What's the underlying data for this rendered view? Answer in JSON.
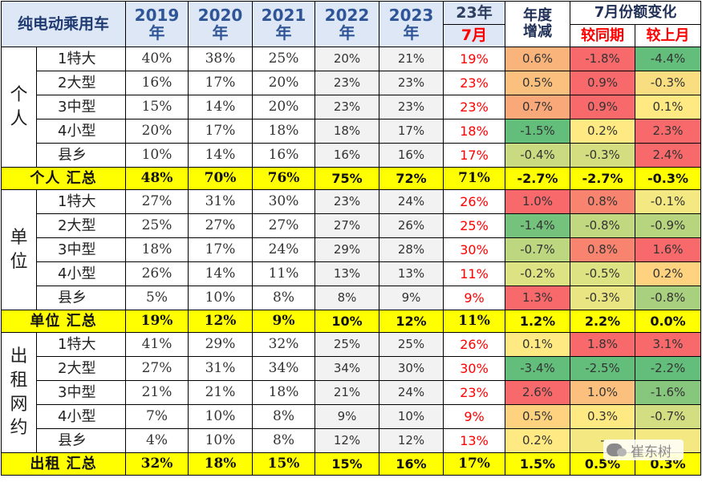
{
  "header": {
    "title": "纯电动乘用车",
    "years": [
      {
        "year": "2019",
        "unit": "年"
      },
      {
        "year": "2020",
        "unit": "年"
      },
      {
        "year": "2021",
        "unit": "年"
      },
      {
        "year": "2022",
        "unit": "年"
      },
      {
        "year": "2023",
        "unit": "年"
      }
    ],
    "col23_top": "23年",
    "col23_bottom": "7月",
    "annual_change": "年度增减",
    "july_change": "7月份额变化",
    "yoy": "较同期",
    "mom": "较上月"
  },
  "groups": [
    {
      "label": "个人",
      "rows": [
        {
          "cat": "1特大",
          "y2019": "40%",
          "y2020": "38%",
          "y2021": "25%",
          "y2022": "20%",
          "y2023": "21%",
          "m7": "19%",
          "annual": "0.6%",
          "yoy": "-1.8%",
          "mom": "-4.4%",
          "annual_color": "#f9b47c",
          "yoy_color": "#f8696b",
          "mom_color": "#63be7b"
        },
        {
          "cat": "2大型",
          "y2019": "16%",
          "y2020": "17%",
          "y2021": "20%",
          "y2022": "23%",
          "y2023": "23%",
          "m7": "23%",
          "annual": "0.5%",
          "yoy": "0.9%",
          "mom": "-0.3%",
          "annual_color": "#fbc07e",
          "yoy_color": "#f8696b",
          "mom_color": "#f8dd81"
        },
        {
          "cat": "3中型",
          "y2019": "15%",
          "y2020": "14%",
          "y2021": "20%",
          "y2022": "23%",
          "y2023": "23%",
          "m7": "23%",
          "annual": "0.7%",
          "yoy": "0.9%",
          "mom": "0.1%",
          "annual_color": "#f9a87a",
          "yoy_color": "#f8696b",
          "mom_color": "#fee983"
        },
        {
          "cat": "4小型",
          "y2019": "20%",
          "y2020": "17%",
          "y2021": "18%",
          "y2022": "18%",
          "y2023": "17%",
          "m7": "18%",
          "annual": "-1.5%",
          "yoy": "0.2%",
          "mom": "2.3%",
          "annual_color": "#63be7b",
          "yoy_color": "#fee983",
          "mom_color": "#f8696b"
        },
        {
          "cat": "县乡",
          "y2019": "10%",
          "y2020": "14%",
          "y2021": "16%",
          "y2022": "16%",
          "y2023": "16%",
          "m7": "17%",
          "annual": "-0.4%",
          "yoy": "-0.3%",
          "mom": "2.4%",
          "annual_color": "#c9da80",
          "yoy_color": "#d5dd81",
          "mom_color": "#f8696b"
        }
      ],
      "summary": {
        "label": "个人 汇总",
        "y2019": "48%",
        "y2020": "70%",
        "y2021": "76%",
        "y2022": "75%",
        "y2023": "72%",
        "m7": "71%",
        "annual": "-2.7%",
        "yoy": "-2.7%",
        "mom": "-0.3%"
      }
    },
    {
      "label": "单位",
      "rows": [
        {
          "cat": "1特大",
          "y2019": "27%",
          "y2020": "31%",
          "y2021": "30%",
          "y2022": "23%",
          "y2023": "24%",
          "m7": "26%",
          "annual": "1.0%",
          "yoy": "0.8%",
          "mom": "-0.1%",
          "annual_color": "#f8696b",
          "yoy_color": "#f8846f",
          "mom_color": "#f4e883"
        },
        {
          "cat": "2大型",
          "y2019": "25%",
          "y2020": "27%",
          "y2021": "27%",
          "y2022": "27%",
          "y2023": "26%",
          "m7": "25%",
          "annual": "-1.4%",
          "yoy": "-0.8%",
          "mom": "-0.9%",
          "annual_color": "#74c27c",
          "yoy_color": "#c2d880",
          "mom_color": "#b7d57f"
        },
        {
          "cat": "3中型",
          "y2019": "18%",
          "y2020": "17%",
          "y2021": "24%",
          "y2022": "29%",
          "y2023": "28%",
          "m7": "30%",
          "annual": "-0.7%",
          "yoy": "0.8%",
          "mom": "1.6%",
          "annual_color": "#bcd780",
          "yoy_color": "#f8846f",
          "mom_color": "#f8696b"
        },
        {
          "cat": "4小型",
          "y2019": "26%",
          "y2020": "14%",
          "y2021": "11%",
          "y2022": "13%",
          "y2023": "13%",
          "m7": "11%",
          "annual": "-0.2%",
          "yoy": "-0.5%",
          "mom": "0.2%",
          "annual_color": "#dde282",
          "yoy_color": "#dde282",
          "mom_color": "#fed27f"
        },
        {
          "cat": "县乡",
          "y2019": "5%",
          "y2020": "10%",
          "y2021": "8%",
          "y2022": "8%",
          "y2023": "9%",
          "m7": "9%",
          "annual": "1.3%",
          "yoy": "-0.3%",
          "mom": "-0.8%",
          "annual_color": "#f8696b",
          "yoy_color": "#e9e583",
          "mom_color": "#a9d07f"
        }
      ],
      "summary": {
        "label": "单位 汇总",
        "y2019": "19%",
        "y2020": "12%",
        "y2021": "9%",
        "y2022": "10%",
        "y2023": "12%",
        "m7": "11%",
        "annual": "1.2%",
        "yoy": "2.2%",
        "mom": "0.0%"
      }
    },
    {
      "label": "出租网约",
      "rows": [
        {
          "cat": "1特大",
          "y2019": "41%",
          "y2020": "29%",
          "y2021": "32%",
          "y2022": "25%",
          "y2023": "25%",
          "m7": "26%",
          "annual": "0.1%",
          "yoy": "1.8%",
          "mom": "3.1%",
          "annual_color": "#fee983",
          "yoy_color": "#f8696b",
          "mom_color": "#f8696b"
        },
        {
          "cat": "2大型",
          "y2019": "27%",
          "y2020": "31%",
          "y2021": "34%",
          "y2022": "34%",
          "y2023": "30%",
          "m7": "30%",
          "annual": "-3.4%",
          "yoy": "-2.5%",
          "mom": "-2.2%",
          "annual_color": "#63be7b",
          "yoy_color": "#63be7b",
          "mom_color": "#63be7b"
        },
        {
          "cat": "3中型",
          "y2019": "21%",
          "y2020": "21%",
          "y2021": "18%",
          "y2022": "21%",
          "y2023": "24%",
          "m7": "23%",
          "annual": "2.6%",
          "yoy": "1.0%",
          "mom": "-1.6%",
          "annual_color": "#f8696b",
          "yoy_color": "#fbc07e",
          "mom_color": "#87c67d"
        },
        {
          "cat": "4小型",
          "y2019": "7%",
          "y2020": "10%",
          "y2021": "8%",
          "y2022": "9%",
          "y2023": "10%",
          "m7": "9%",
          "annual": "0.5%",
          "yoy": "0.3%",
          "mom": "-0.7%",
          "annual_color": "#fed27f",
          "yoy_color": "#fee983",
          "mom_color": "#d3dd81"
        },
        {
          "cat": "县乡",
          "y2019": "4%",
          "y2020": "10%",
          "y2021": "8%",
          "y2022": "12%",
          "y2023": "12%",
          "m7": "13%",
          "annual": "0.2%",
          "yoy": "-",
          "mom": "",
          "annual_color": "#fee983",
          "yoy_color": "#f4e883",
          "mom_color": "#f4e883"
        }
      ],
      "summary": {
        "label": "出租 汇总",
        "y2019": "32%",
        "y2020": "18%",
        "y2021": "15%",
        "y2022": "15%",
        "y2023": "16%",
        "m7": "17%",
        "annual": "1.5%",
        "yoy": "0.5%",
        "mom": "0.3%"
      }
    }
  ],
  "watermark": {
    "text": "崔东树",
    "icon": "wechat-icon"
  }
}
